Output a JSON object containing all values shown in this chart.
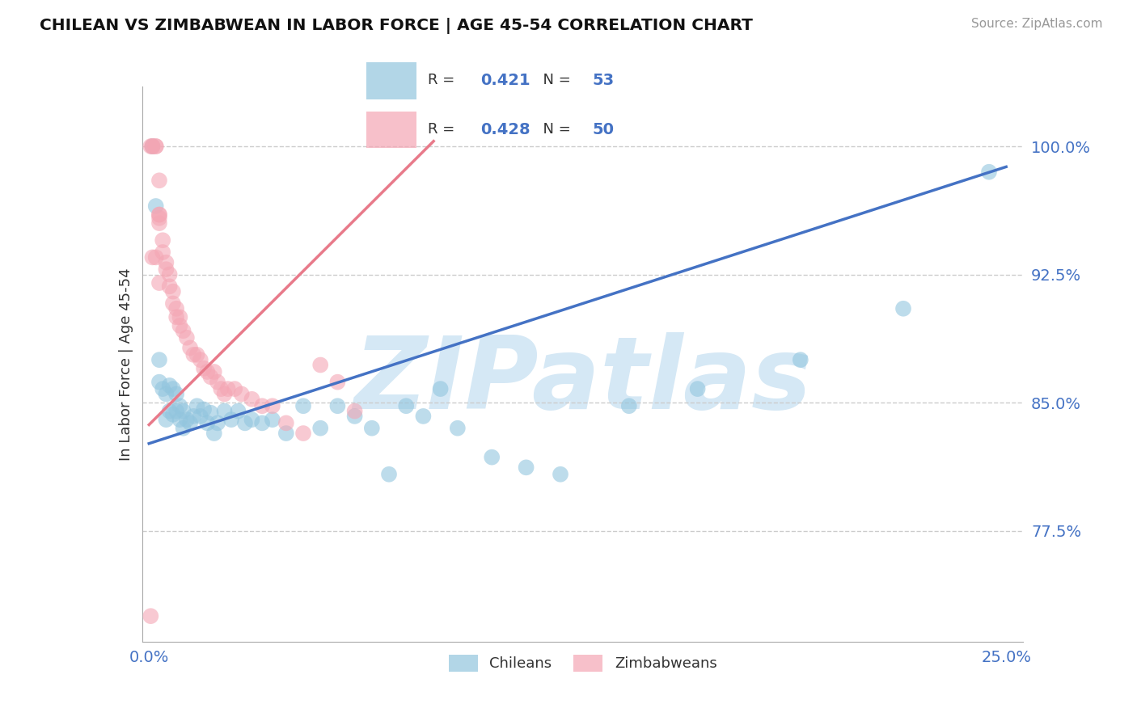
{
  "title": "CHILEAN VS ZIMBABWEAN IN LABOR FORCE | AGE 45-54 CORRELATION CHART",
  "source": "Source: ZipAtlas.com",
  "ylabel_ticks": [
    0.775,
    0.85,
    0.925,
    1.0
  ],
  "ylabel_tick_labels": [
    "77.5%",
    "85.0%",
    "92.5%",
    "100.0%"
  ],
  "xlim": [
    -0.002,
    0.255
  ],
  "ylim": [
    0.71,
    1.035
  ],
  "ylabel": "In Labor Force | Age 45-54",
  "chilean_R": 0.421,
  "chilean_N": 53,
  "zimbabwean_R": 0.428,
  "zimbabwean_N": 50,
  "chilean_color": "#92c5de",
  "zimbabwean_color": "#f4a6b4",
  "chilean_line_color": "#4472c4",
  "zimbabwean_line_color": "#e87a8a",
  "background_color": "#ffffff",
  "watermark_text": "ZIPatlas",
  "watermark_color": "#d5e8f5",
  "chilean_line_x": [
    0.0,
    0.25
  ],
  "chilean_line_y": [
    0.826,
    0.988
  ],
  "zimbabwean_line_x": [
    0.0,
    0.083
  ],
  "zimbabwean_line_y": [
    0.837,
    1.003
  ],
  "chilean_x": [
    0.001,
    0.002,
    0.003,
    0.003,
    0.004,
    0.005,
    0.005,
    0.006,
    0.006,
    0.007,
    0.007,
    0.008,
    0.008,
    0.009,
    0.009,
    0.01,
    0.01,
    0.011,
    0.012,
    0.013,
    0.014,
    0.015,
    0.016,
    0.017,
    0.018,
    0.019,
    0.02,
    0.022,
    0.024,
    0.026,
    0.028,
    0.03,
    0.033,
    0.036,
    0.04,
    0.045,
    0.05,
    0.055,
    0.06,
    0.065,
    0.07,
    0.075,
    0.08,
    0.085,
    0.09,
    0.1,
    0.11,
    0.12,
    0.14,
    0.16,
    0.19,
    0.22,
    0.245
  ],
  "chilean_y": [
    1.0,
    0.965,
    0.862,
    0.875,
    0.858,
    0.84,
    0.855,
    0.845,
    0.86,
    0.843,
    0.858,
    0.845,
    0.855,
    0.84,
    0.848,
    0.835,
    0.845,
    0.84,
    0.838,
    0.842,
    0.848,
    0.842,
    0.846,
    0.838,
    0.844,
    0.832,
    0.838,
    0.845,
    0.84,
    0.845,
    0.838,
    0.84,
    0.838,
    0.84,
    0.832,
    0.848,
    0.835,
    0.848,
    0.842,
    0.835,
    0.808,
    0.848,
    0.842,
    0.858,
    0.835,
    0.818,
    0.812,
    0.808,
    0.848,
    0.858,
    0.875,
    0.905,
    0.985
  ],
  "zimbabwean_x": [
    0.0005,
    0.001,
    0.001,
    0.002,
    0.002,
    0.003,
    0.003,
    0.003,
    0.003,
    0.004,
    0.004,
    0.005,
    0.005,
    0.006,
    0.006,
    0.007,
    0.007,
    0.008,
    0.008,
    0.009,
    0.009,
    0.01,
    0.011,
    0.012,
    0.013,
    0.014,
    0.015,
    0.016,
    0.017,
    0.018,
    0.019,
    0.02,
    0.021,
    0.022,
    0.023,
    0.025,
    0.027,
    0.03,
    0.033,
    0.036,
    0.04,
    0.045,
    0.05,
    0.055,
    0.06,
    0.001,
    0.002,
    0.003,
    0.003,
    0.0005
  ],
  "zimbabwean_y": [
    1.0,
    1.0,
    1.0,
    1.0,
    1.0,
    0.98,
    0.96,
    0.96,
    0.955,
    0.945,
    0.938,
    0.932,
    0.928,
    0.925,
    0.918,
    0.915,
    0.908,
    0.905,
    0.9,
    0.895,
    0.9,
    0.892,
    0.888,
    0.882,
    0.878,
    0.878,
    0.875,
    0.87,
    0.868,
    0.865,
    0.868,
    0.862,
    0.858,
    0.855,
    0.858,
    0.858,
    0.855,
    0.852,
    0.848,
    0.848,
    0.838,
    0.832,
    0.872,
    0.862,
    0.845,
    0.935,
    0.935,
    0.958,
    0.92,
    0.725
  ]
}
